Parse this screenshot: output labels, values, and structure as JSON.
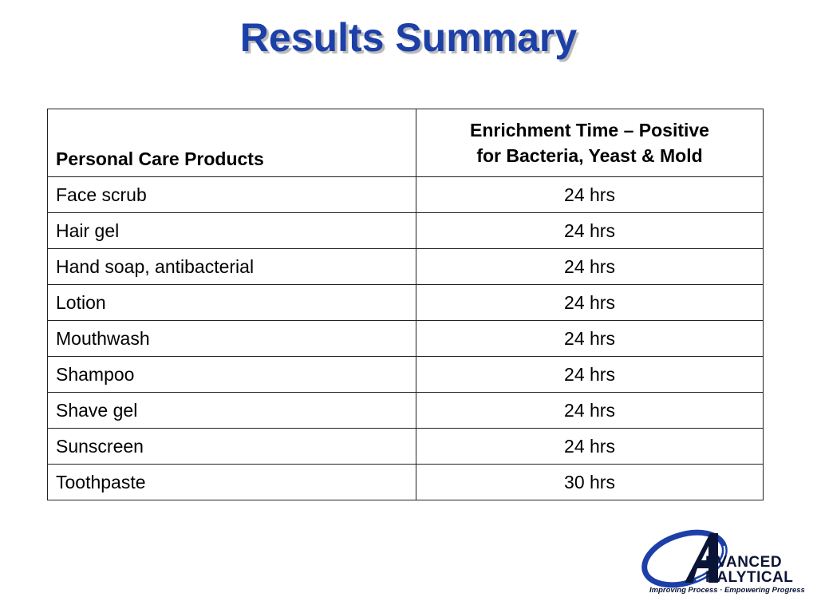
{
  "slide": {
    "title": "Results Summary"
  },
  "table": {
    "headers": {
      "product": "Personal Care Products",
      "time_line1": "Enrichment Time – Positive",
      "time_line2": "for Bacteria, Yeast & Mold"
    },
    "rows": [
      {
        "product": "Face scrub",
        "time": "24 hrs"
      },
      {
        "product": "Hair gel",
        "time": "24 hrs"
      },
      {
        "product": "Hand soap, antibacterial",
        "time": "24 hrs"
      },
      {
        "product": "Lotion",
        "time": "24 hrs"
      },
      {
        "product": "Mouthwash",
        "time": "24 hrs"
      },
      {
        "product": "Shampoo",
        "time": "24 hrs"
      },
      {
        "product": "Shave gel",
        "time": "24 hrs"
      },
      {
        "product": "Sunscreen",
        "time": "24 hrs"
      },
      {
        "product": "Toothpaste",
        "time": "30 hrs"
      }
    ]
  },
  "logo": {
    "letter": "A",
    "word1": "DVANCED",
    "word2": "NALYTICAL",
    "tagline": "Improving Process · Empowering Progress"
  },
  "colors": {
    "title": "#1c3fa8",
    "logo_swoosh": "#1c3fa8",
    "logo_text": "#0a1436"
  }
}
